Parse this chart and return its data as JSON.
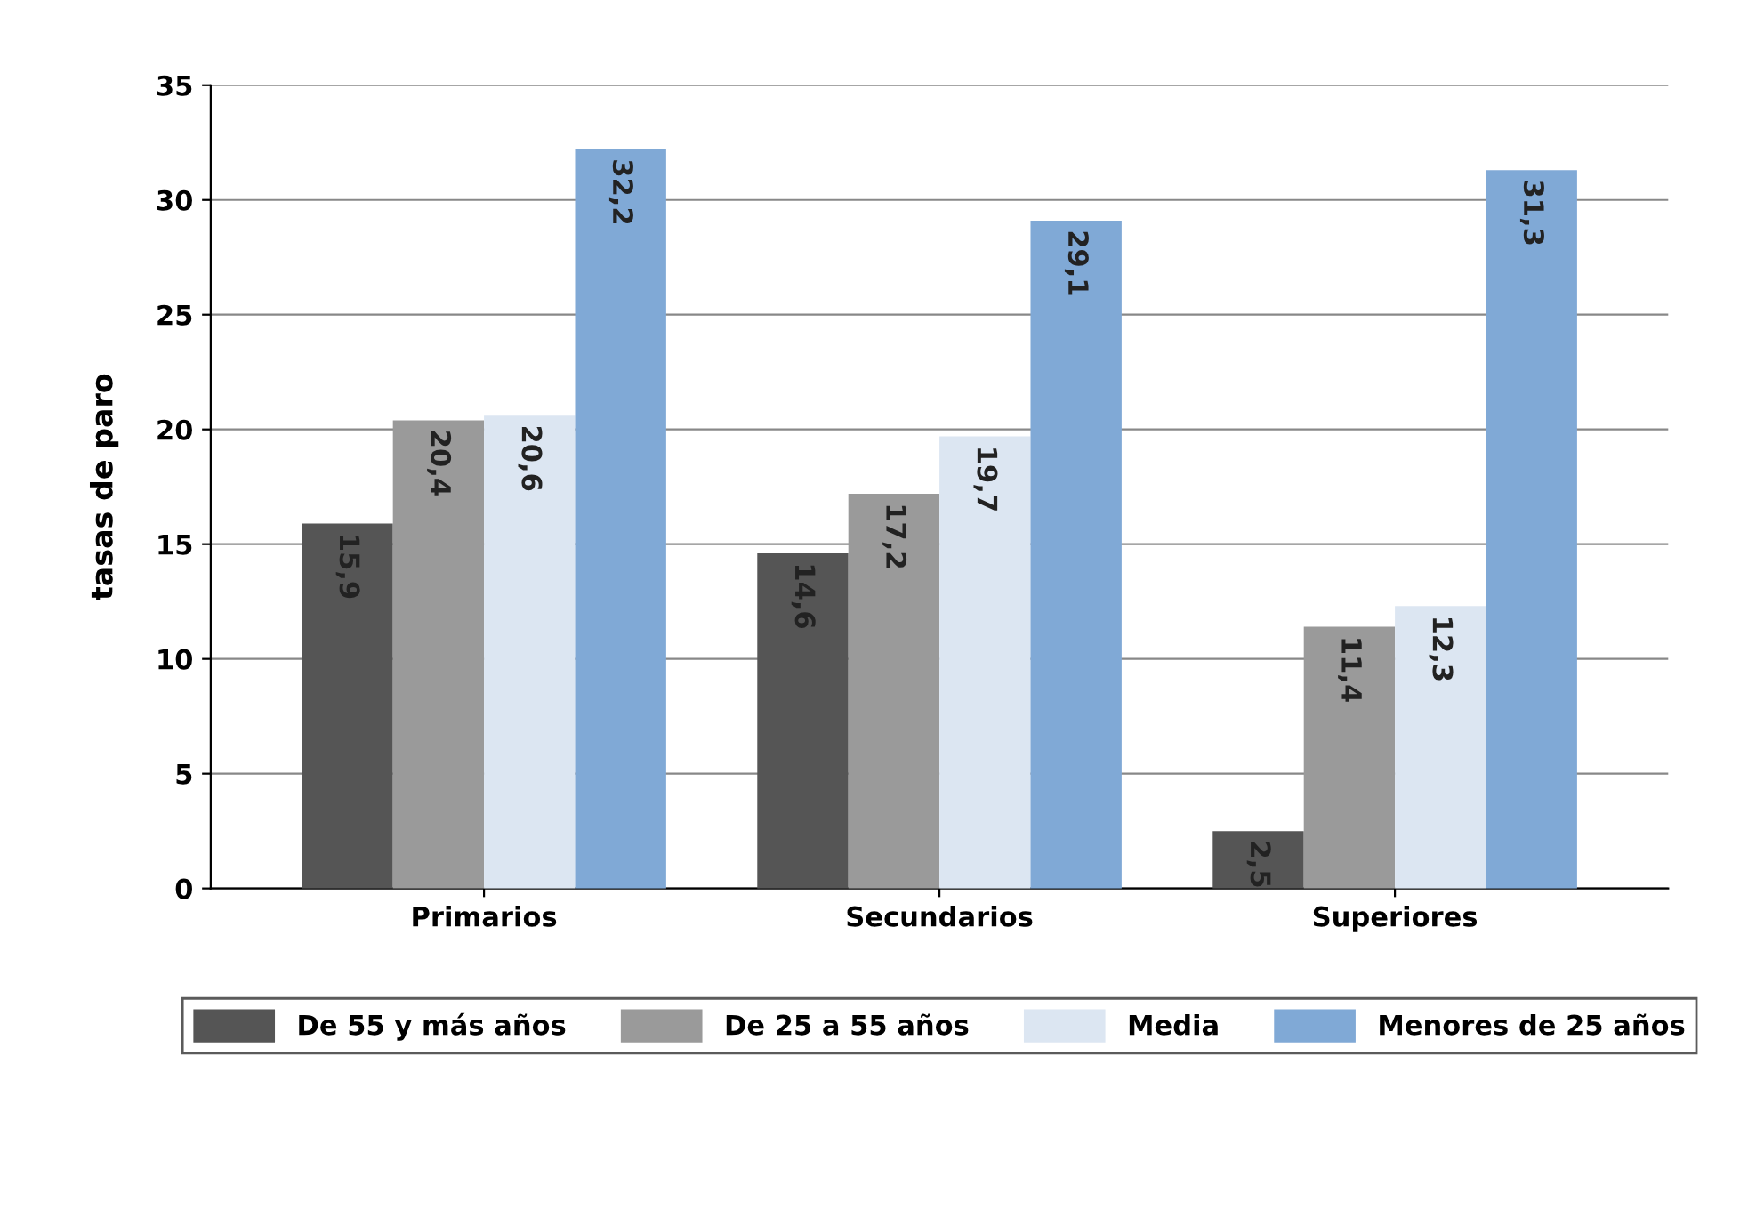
{
  "chart_data": {
    "type": "bar",
    "ylabel": "tasas de paro",
    "categories": [
      "Primarios",
      "Secundarios",
      "Superiores"
    ],
    "series": [
      {
        "name": "De 55 y más años",
        "color": "#555555",
        "values": [
          15.9,
          14.6,
          2.5
        ],
        "value_labels": [
          "15,9",
          "14,6",
          "2,5"
        ]
      },
      {
        "name": "De 25 a 55 años",
        "color": "#9a9a9a",
        "values": [
          20.4,
          17.2,
          11.4
        ],
        "value_labels": [
          "20,4",
          "17,2",
          "11,4"
        ]
      },
      {
        "name": "Media",
        "color": "#dce6f2",
        "values": [
          20.6,
          19.7,
          12.3
        ],
        "value_labels": [
          "20,6",
          "19,7",
          "12,3"
        ]
      },
      {
        "name": "Menores de 25 años",
        "color": "#80a9d6",
        "values": [
          32.2,
          29.1,
          31.3
        ],
        "value_labels": [
          "32,2",
          "29,1",
          "31,3"
        ]
      }
    ],
    "ylim": [
      0,
      35
    ],
    "yticks": [
      0,
      5,
      10,
      15,
      20,
      25,
      30,
      35
    ],
    "grid": "y",
    "legend": "bottom"
  }
}
